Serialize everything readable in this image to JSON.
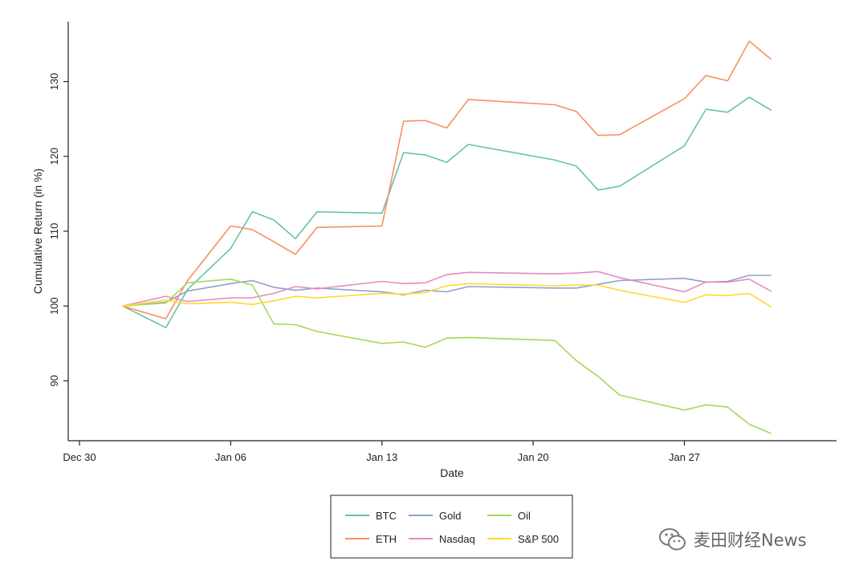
{
  "chart_data": {
    "type": "line",
    "title": "",
    "xlabel": "Date",
    "ylabel": "Cumulative Return (in %)",
    "x_ticks": [
      "Dec 30",
      "Jan 06",
      "Jan 13",
      "Jan 20",
      "Jan 27"
    ],
    "y_ticks": [
      "90",
      "100",
      "110",
      "120",
      "130"
    ],
    "xlim": [
      "2019-12-30",
      "2020-02-02"
    ],
    "ylim": [
      82,
      138
    ],
    "grid": false,
    "legend_position": "bottom-center",
    "x": [
      "2020-01-01",
      "2020-01-03",
      "2020-01-04",
      "2020-01-06",
      "2020-01-07",
      "2020-01-08",
      "2020-01-09",
      "2020-01-10",
      "2020-01-13",
      "2020-01-14",
      "2020-01-15",
      "2020-01-16",
      "2020-01-17",
      "2020-01-21",
      "2020-01-22",
      "2020-01-23",
      "2020-01-24",
      "2020-01-27",
      "2020-01-28",
      "2020-01-29",
      "2020-01-30",
      "2020-01-31"
    ],
    "series": [
      {
        "name": "BTC",
        "color": "#66c2a5",
        "values": [
          100,
          97.1,
          102.2,
          107.7,
          112.6,
          111.5,
          109.0,
          112.6,
          112.4,
          120.5,
          120.2,
          119.2,
          121.6,
          119.5,
          118.7,
          115.5,
          116.0,
          121.4,
          126.3,
          125.9,
          127.9,
          126.2
        ]
      },
      {
        "name": "ETH",
        "color": "#fc8d62",
        "values": [
          100,
          98.3,
          103.4,
          110.7,
          110.2,
          108.6,
          106.9,
          110.5,
          110.7,
          124.7,
          124.8,
          123.8,
          127.6,
          126.9,
          126.0,
          122.8,
          122.9,
          127.7,
          130.8,
          130.1,
          135.4,
          133.0
        ]
      },
      {
        "name": "Gold",
        "color": "#8da0cb",
        "values": [
          100,
          100.5,
          102.0,
          103.0,
          103.4,
          102.5,
          102.1,
          102.4,
          101.9,
          101.5,
          102.1,
          101.9,
          102.6,
          102.4,
          102.4,
          102.9,
          103.4,
          103.7,
          103.2,
          103.3,
          104.1,
          104.1
        ]
      },
      {
        "name": "Nasdaq",
        "color": "#e78ac3",
        "values": [
          100,
          101.3,
          100.6,
          101.1,
          101.1,
          101.7,
          102.6,
          102.3,
          103.3,
          103.0,
          103.1,
          104.2,
          104.5,
          104.3,
          104.4,
          104.6,
          103.8,
          101.9,
          103.2,
          103.2,
          103.6,
          102.0
        ]
      },
      {
        "name": "Oil",
        "color": "#a6d854",
        "values": [
          100,
          100.4,
          103.1,
          103.6,
          102.8,
          97.6,
          97.5,
          96.6,
          95.0,
          95.2,
          94.5,
          95.7,
          95.8,
          95.4,
          92.7,
          90.6,
          88.1,
          86.1,
          86.8,
          86.5,
          84.2,
          83.0
        ]
      },
      {
        "name": "S&P 500",
        "color": "#ffd92f",
        "values": [
          100,
          100.8,
          100.3,
          100.5,
          100.2,
          100.7,
          101.3,
          101.1,
          101.7,
          101.6,
          101.8,
          102.7,
          103.0,
          102.7,
          102.8,
          102.8,
          102.1,
          100.5,
          101.5,
          101.4,
          101.7,
          99.9
        ]
      }
    ]
  },
  "legend": {
    "items": [
      {
        "name": "BTC",
        "color": "#66c2a5"
      },
      {
        "name": "Gold",
        "color": "#8da0cb"
      },
      {
        "name": "Oil",
        "color": "#a6d854"
      },
      {
        "name": "ETH",
        "color": "#fc8d62"
      },
      {
        "name": "Nasdaq",
        "color": "#e78ac3"
      },
      {
        "name": "S&P 500",
        "color": "#ffd92f"
      }
    ]
  },
  "watermark": {
    "text": "麦田财经News",
    "icon": "wechat-icon"
  }
}
